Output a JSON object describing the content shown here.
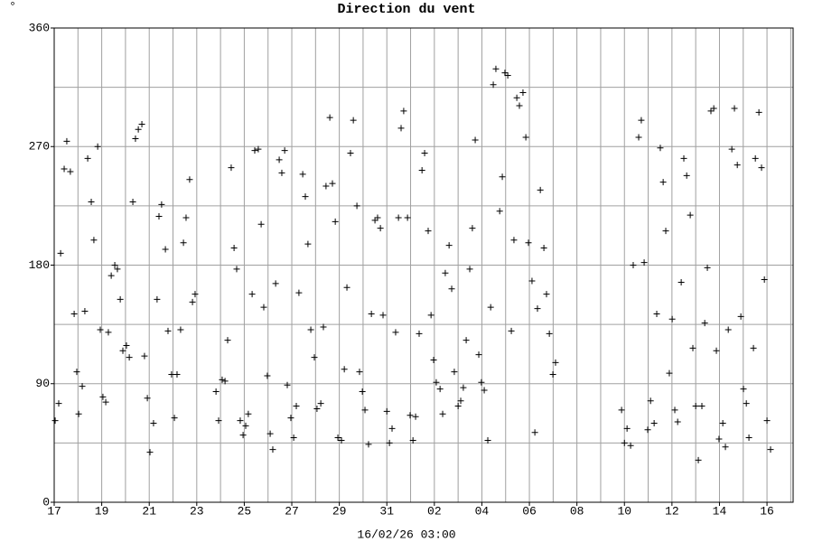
{
  "chart_data": {
    "type": "scatter",
    "title": "Direction du vent",
    "y_label": "°",
    "x_label": "16/02/26 03:00",
    "color": "#000000",
    "grid": true,
    "xlim": [
      0,
      31.1
    ],
    "ylim": [
      0,
      360
    ],
    "yticks": [
      0,
      90,
      180,
      270,
      360
    ],
    "minor_yticks": [
      45,
      135,
      225,
      315
    ],
    "xticks": [
      {
        "value": 0,
        "label": "17"
      },
      {
        "value": 2,
        "label": "19"
      },
      {
        "value": 4,
        "label": "21"
      },
      {
        "value": 6,
        "label": "23"
      },
      {
        "value": 8,
        "label": "25"
      },
      {
        "value": 10,
        "label": "27"
      },
      {
        "value": 12,
        "label": "29"
      },
      {
        "value": 14,
        "label": "31"
      },
      {
        "value": 16,
        "label": "02"
      },
      {
        "value": 18,
        "label": "04"
      },
      {
        "value": 20,
        "label": "06"
      },
      {
        "value": 22,
        "label": "08"
      },
      {
        "value": 24,
        "label": "10"
      },
      {
        "value": 26,
        "label": "12"
      },
      {
        "value": 28,
        "label": "14"
      },
      {
        "value": 30,
        "label": "16"
      }
    ],
    "minor_xticks": [
      1,
      3,
      5,
      7,
      9,
      11,
      13,
      15,
      17,
      19,
      21,
      23,
      25,
      27,
      29,
      31
    ],
    "x": [
      0.04,
      0.19,
      0.27,
      0.42,
      0.53,
      0.68,
      0.84,
      0.95,
      1.03,
      1.18,
      1.29,
      1.41,
      1.56,
      1.67,
      1.83,
      1.94,
      2.05,
      2.17,
      2.28,
      2.4,
      2.55,
      2.66,
      2.78,
      2.89,
      3.04,
      3.16,
      3.31,
      3.42,
      3.54,
      3.69,
      3.8,
      3.92,
      4.03,
      4.18,
      4.33,
      4.41,
      4.52,
      4.68,
      4.79,
      4.94,
      5.06,
      5.17,
      5.32,
      5.44,
      5.55,
      5.7,
      5.82,
      5.93,
      6.81,
      6.92,
      7.07,
      7.19,
      7.3,
      7.45,
      7.57,
      7.68,
      7.83,
      7.95,
      8.06,
      8.17,
      8.33,
      8.44,
      8.59,
      8.71,
      8.82,
      8.97,
      9.09,
      9.2,
      9.32,
      9.47,
      9.58,
      9.7,
      9.81,
      9.96,
      10.08,
      10.19,
      10.3,
      10.46,
      10.57,
      10.68,
      10.8,
      10.95,
      11.06,
      11.22,
      11.33,
      11.44,
      11.6,
      11.71,
      11.83,
      11.94,
      12.09,
      12.21,
      12.32,
      12.47,
      12.59,
      12.74,
      12.85,
      12.97,
      13.08,
      13.23,
      13.35,
      13.5,
      13.61,
      13.73,
      13.84,
      14.0,
      14.11,
      14.22,
      14.37,
      14.49,
      14.6,
      14.71,
      14.87,
      14.98,
      15.1,
      15.21,
      15.36,
      15.48,
      15.59,
      15.74,
      15.86,
      15.97,
      16.08,
      16.24,
      16.35,
      16.46,
      16.62,
      16.73,
      16.84,
      17.0,
      17.11,
      17.22,
      17.34,
      17.49,
      17.6,
      17.72,
      17.87,
      17.98,
      18.1,
      18.25,
      18.37,
      18.48,
      18.59,
      18.75,
      18.86,
      18.97,
      19.09,
      19.24,
      19.35,
      19.47,
      19.58,
      19.73,
      19.85,
      19.96,
      20.11,
      20.23,
      20.34,
      20.46,
      20.61,
      20.72,
      20.84,
      20.99,
      21.1,
      23.88,
      24.0,
      24.11,
      24.26,
      24.37,
      24.6,
      24.71,
      24.83,
      24.98,
      25.1,
      25.25,
      25.36,
      25.51,
      25.63,
      25.74,
      25.89,
      26.01,
      26.12,
      26.24,
      26.39,
      26.5,
      26.62,
      26.77,
      26.88,
      27.0,
      27.11,
      27.26,
      27.38,
      27.49,
      27.64,
      27.76,
      27.87,
      27.98,
      28.14,
      28.25,
      28.37,
      28.52,
      28.63,
      28.75,
      28.9,
      29.01,
      29.13,
      29.24,
      29.43,
      29.51,
      29.66,
      29.77,
      29.89,
      30.0,
      30.15
    ],
    "values": [
      62,
      75,
      189,
      253,
      274,
      251,
      143,
      99,
      67,
      88,
      145,
      261,
      228,
      199,
      270,
      131,
      80,
      76,
      129,
      172,
      180,
      177,
      154,
      115,
      119,
      110,
      228,
      276,
      283,
      287,
      111,
      79,
      38,
      60,
      154,
      217,
      226,
      192,
      130,
      97,
      64,
      97,
      131,
      197,
      216,
      245,
      152,
      158,
      84,
      62,
      93,
      92,
      123,
      254,
      193,
      177,
      62,
      51,
      58,
      67,
      158,
      267,
      268,
      211,
      148,
      96,
      52,
      40,
      166,
      260,
      250,
      267,
      89,
      64,
      49,
      73,
      159,
      249,
      232,
      196,
      131,
      110,
      71,
      75,
      133,
      240,
      292,
      242,
      213,
      49,
      47,
      101,
      163,
      265,
      290,
      225,
      99,
      84,
      70,
      44,
      143,
      214,
      216,
      208,
      142,
      69,
      45,
      56,
      129,
      216,
      284,
      297,
      216,
      66,
      47,
      65,
      128,
      252,
      265,
      206,
      142,
      108,
      91,
      86,
      67,
      174,
      195,
      162,
      99,
      73,
      77,
      87,
      123,
      177,
      208,
      275,
      112,
      91,
      85,
      47,
      148,
      317,
      329,
      221,
      247,
      326,
      324,
      130,
      199,
      307,
      301,
      311,
      277,
      197,
      168,
      53,
      147,
      237,
      193,
      158,
      128,
      97,
      106,
      70,
      45,
      56,
      43,
      180,
      277,
      290,
      182,
      55,
      77,
      60,
      143,
      269,
      243,
      206,
      98,
      139,
      70,
      61,
      167,
      261,
      248,
      218,
      117,
      73,
      32,
      73,
      136,
      178,
      297,
      299,
      115,
      48,
      60,
      42,
      131,
      268,
      299,
      256,
      141,
      86,
      75,
      49,
      117,
      261,
      296,
      254,
      169,
      62,
      40
    ]
  }
}
